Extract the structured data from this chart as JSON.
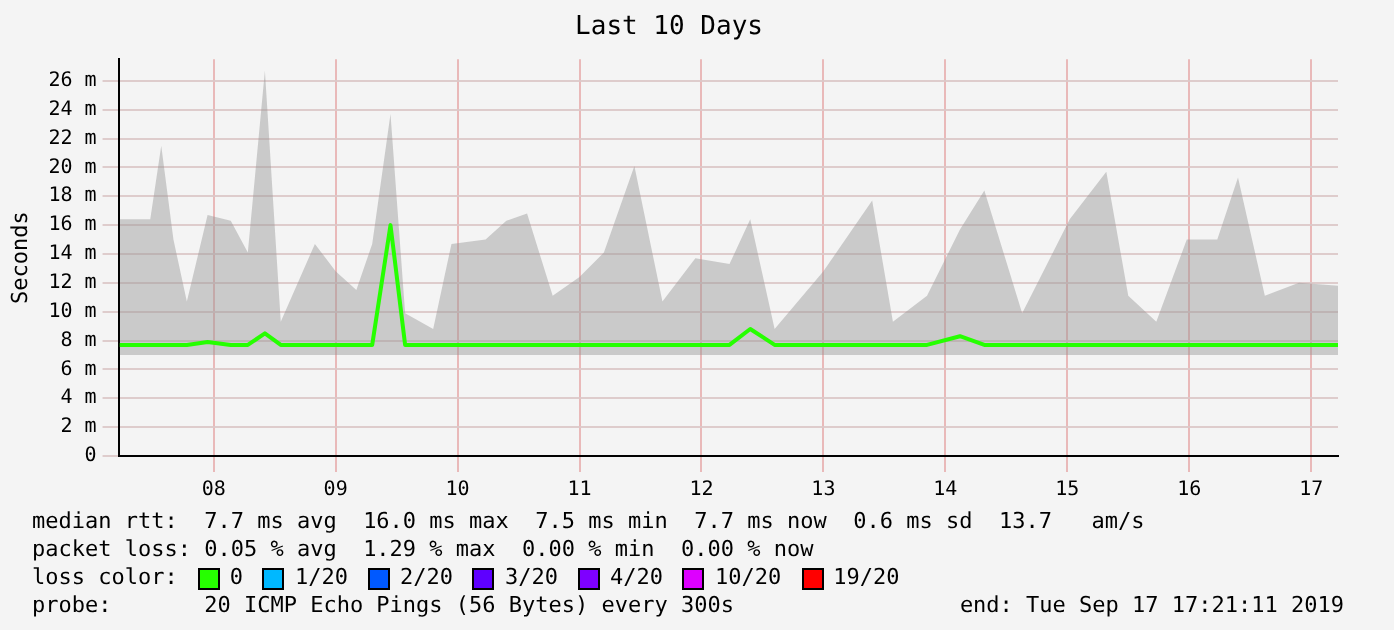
{
  "chart_data": {
    "type": "line",
    "title": "Last 10 Days",
    "ylabel": "Seconds",
    "x": [
      7.73,
      7.98,
      8.07,
      8.17,
      8.28,
      8.45,
      8.64,
      8.78,
      8.92,
      9.05,
      9.33,
      9.5,
      9.67,
      9.8,
      9.95,
      10.07,
      10.3,
      10.45,
      10.73,
      10.9,
      11.07,
      11.28,
      11.5,
      11.7,
      11.95,
      12.18,
      12.45,
      12.73,
      12.9,
      13.1,
      13.5,
      13.9,
      14.07,
      14.35,
      14.62,
      14.82,
      15.13,
      15.52,
      15.82,
      16.0,
      16.23,
      16.48,
      16.73,
      16.9,
      17.12,
      17.4,
      17.72
    ],
    "series": [
      {
        "name": "0",
        "color": "#26ff00",
        "values": [
          7.7,
          7.7,
          7.7,
          7.7,
          7.7,
          7.9,
          7.7,
          7.7,
          8.5,
          7.7,
          7.7,
          7.7,
          7.7,
          7.7,
          16.0,
          7.7,
          7.7,
          7.7,
          7.7,
          7.7,
          7.7,
          7.7,
          7.7,
          7.7,
          7.7,
          7.7,
          7.7,
          7.7,
          8.8,
          7.7,
          7.7,
          7.7,
          7.7,
          7.7,
          8.3,
          7.7,
          7.7,
          7.7,
          7.7,
          7.7,
          7.7,
          7.7,
          7.7,
          7.7,
          7.7,
          7.7,
          7.7
        ],
        "lower": [
          7.0,
          7.0,
          7.0,
          7.0,
          7.0,
          7.0,
          7.0,
          7.0,
          7.0,
          7.0,
          7.0,
          7.0,
          7.0,
          7.0,
          7.0,
          7.0,
          7.0,
          7.0,
          7.0,
          7.0,
          7.0,
          7.0,
          7.0,
          7.0,
          7.0,
          7.0,
          7.0,
          7.0,
          7.0,
          7.0,
          7.0,
          7.0,
          7.0,
          7.0,
          7.0,
          7.0,
          7.0,
          7.0,
          7.0,
          7.0,
          7.0,
          7.0,
          7.0,
          7.0,
          7.0,
          7.0,
          7.0
        ],
        "upper": [
          16.4,
          16.4,
          21.5,
          15,
          10.7,
          16.7,
          16.3,
          14.1,
          26.7,
          9.3,
          14.7,
          12.8,
          11.5,
          14.7,
          23.7,
          9.9,
          8.8,
          14.7,
          15,
          16.3,
          16.8,
          11.1,
          12.4,
          14.1,
          20.1,
          10.7,
          13.7,
          13.3,
          16.4,
          8.8,
          12.8,
          17.7,
          9.3,
          11.1,
          15.7,
          18.4,
          9.9,
          16.4,
          19.7,
          11.1,
          9.3,
          15,
          15,
          19.3,
          11.1,
          12,
          11.8
        ]
      },
      {
        "name": "1/20",
        "color": "#00b8ff",
        "values": [
          null,
          null,
          null,
          null,
          null,
          null,
          null,
          null,
          null,
          null,
          null,
          null,
          null,
          null,
          null,
          null,
          null,
          null,
          null,
          null,
          null,
          null,
          null,
          null,
          null,
          null,
          null,
          null,
          null,
          null,
          null,
          null,
          null,
          null,
          null,
          null,
          null,
          null,
          null,
          null,
          null,
          null,
          null,
          null,
          null,
          null,
          null
        ]
      },
      {
        "name": "2/20",
        "color": "#0059ff",
        "values": [
          null,
          null,
          null,
          null,
          null,
          null,
          null,
          null,
          null,
          null,
          null,
          null,
          null,
          null,
          null,
          null,
          null,
          null,
          null,
          null,
          null,
          null,
          null,
          null,
          null,
          null,
          null,
          null,
          null,
          null,
          null,
          null,
          null,
          null,
          null,
          null,
          null,
          null,
          null,
          null,
          null,
          null,
          null,
          null,
          null,
          null,
          null
        ]
      },
      {
        "name": "3/20",
        "color": "#5e00ff",
        "values": [
          null,
          null,
          null,
          null,
          null,
          null,
          null,
          null,
          null,
          null,
          null,
          null,
          null,
          null,
          null,
          null,
          null,
          null,
          null,
          null,
          null,
          null,
          null,
          null,
          null,
          null,
          null,
          null,
          null,
          null,
          null,
          null,
          null,
          null,
          null,
          null,
          null,
          null,
          null,
          null,
          null,
          null,
          null,
          null,
          null,
          null,
          null
        ]
      },
      {
        "name": "4/20",
        "color": "#7e00ff",
        "values": [
          null,
          null,
          null,
          null,
          null,
          null,
          null,
          null,
          null,
          null,
          null,
          null,
          null,
          null,
          null,
          null,
          null,
          null,
          null,
          null,
          null,
          null,
          null,
          null,
          null,
          null,
          null,
          null,
          null,
          null,
          null,
          null,
          null,
          null,
          null,
          null,
          null,
          null,
          null,
          null,
          null,
          null,
          null,
          null,
          null,
          null,
          null
        ]
      },
      {
        "name": "10/20",
        "color": "#dd00ff",
        "values": [
          null,
          null,
          null,
          null,
          null,
          null,
          null,
          null,
          null,
          null,
          null,
          null,
          null,
          null,
          null,
          null,
          null,
          null,
          null,
          null,
          null,
          null,
          null,
          null,
          null,
          null,
          null,
          null,
          null,
          null,
          null,
          null,
          null,
          null,
          null,
          null,
          null,
          null,
          null,
          null,
          null,
          null,
          null,
          null,
          null,
          null,
          null
        ]
      },
      {
        "name": "19/20",
        "color": "#ff0000",
        "values": [
          null,
          null,
          null,
          null,
          null,
          null,
          null,
          null,
          null,
          null,
          null,
          null,
          null,
          null,
          null,
          null,
          null,
          null,
          null,
          null,
          null,
          null,
          null,
          null,
          null,
          null,
          null,
          null,
          null,
          null,
          null,
          null,
          null,
          null,
          null,
          null,
          null,
          null,
          null,
          null,
          null,
          null,
          null,
          null,
          null,
          null,
          null
        ]
      }
    ],
    "xlim": [
      7.72,
      17.72
    ],
    "xticks": [
      {
        "value": 8.5,
        "label": "08"
      },
      {
        "value": 9.5,
        "label": "09"
      },
      {
        "value": 10.5,
        "label": "10"
      },
      {
        "value": 11.5,
        "label": "11"
      },
      {
        "value": 12.5,
        "label": "12"
      },
      {
        "value": 13.5,
        "label": "13"
      },
      {
        "value": 14.5,
        "label": "14"
      },
      {
        "value": 15.5,
        "label": "15"
      },
      {
        "value": 16.5,
        "label": "16"
      },
      {
        "value": 17.5,
        "label": "17"
      }
    ],
    "ylim": [
      0,
      27.5
    ],
    "yticks": [
      0,
      {
        "value": 2,
        "label": "2 m"
      },
      {
        "value": 4,
        "label": "4 m"
      },
      {
        "value": 6,
        "label": "6 m"
      },
      {
        "value": 8,
        "label": "8 m"
      },
      {
        "value": 10,
        "label": "10 m"
      },
      {
        "value": 12,
        "label": "12 m"
      },
      {
        "value": 14,
        "label": "14 m"
      },
      {
        "value": 16,
        "label": "16 m"
      },
      {
        "value": 18,
        "label": "18 m"
      },
      {
        "value": 20,
        "label": "20 m"
      },
      {
        "value": 22,
        "label": "22 m"
      },
      {
        "value": 24,
        "label": "24 m"
      },
      {
        "value": 26,
        "label": "26 m"
      }
    ],
    "grid": true,
    "legend": "bottom",
    "legend_title": "loss color:",
    "marker": "none",
    "line_style": "solid",
    "annotations": [
      "median rtt:  7.7 ms avg  16.0 ms max  7.5 ms min  7.7 ms now  0.6 ms sd  13.7   am/s",
      "packet loss: 0.05 % avg  1.29 % max  0.00 % min  0.00 % now",
      "probe:       20 ICMP Echo Pings (56 Bytes) every 300s",
      "end: Tue Sep 17 17:21:11 2019"
    ]
  }
}
